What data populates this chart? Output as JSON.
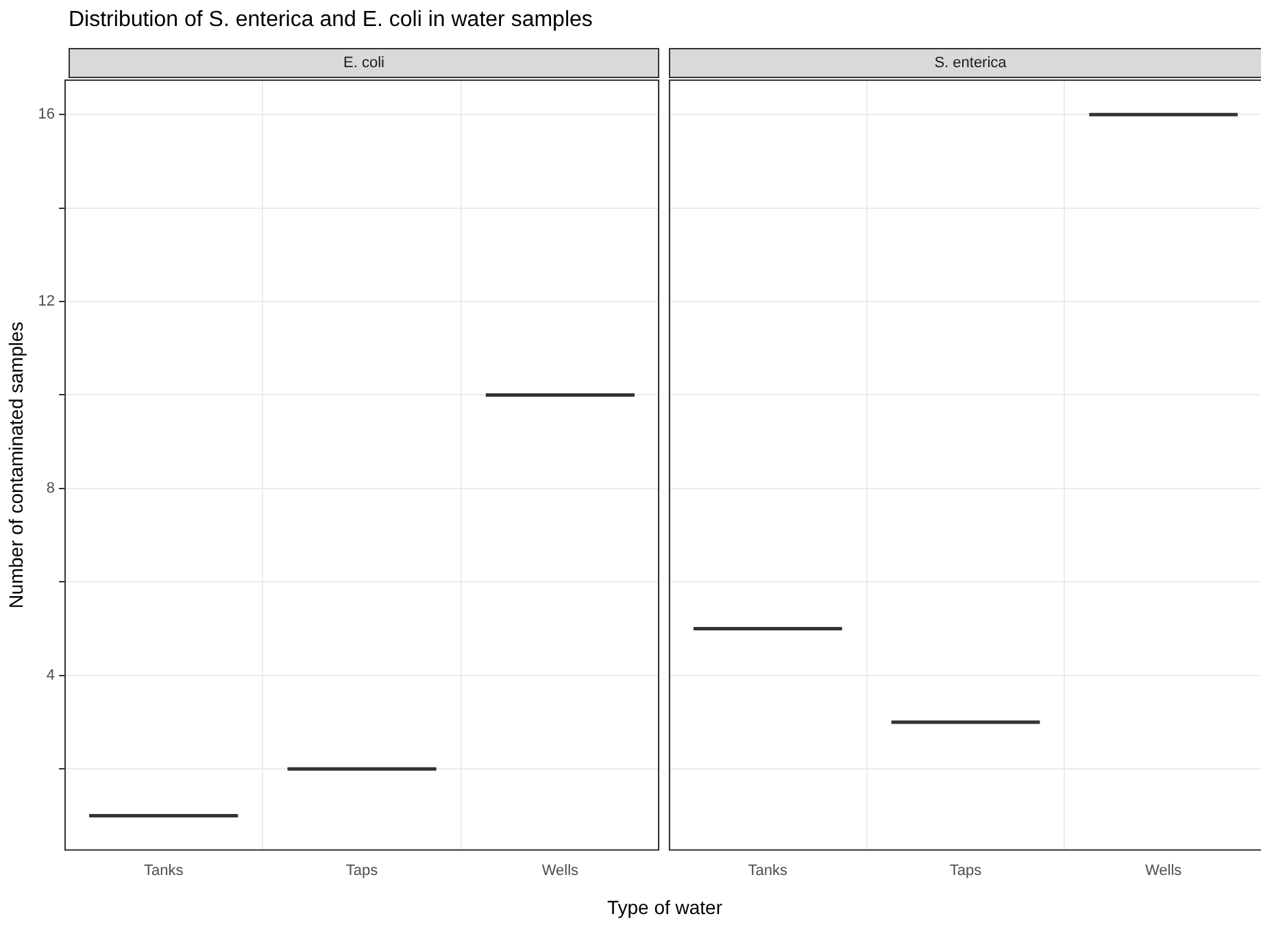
{
  "chart_data": [
    {
      "type": "box",
      "title": "Distribution of S. enterica and E. coli in water samples",
      "subtitle": "E. coli",
      "xlabel": "Type of water",
      "ylabel": "Number of contaminated samples",
      "categories": [
        "Tanks",
        "Taps",
        "Wells"
      ],
      "boxes": [
        {
          "low": 1,
          "q1": 1,
          "median": 1,
          "q3": 1,
          "high": 1
        },
        {
          "low": 2,
          "q1": 2,
          "median": 2,
          "q3": 2,
          "high": 2
        },
        {
          "low": 10,
          "q1": 10,
          "median": 10,
          "q3": 10,
          "high": 10
        }
      ],
      "ylim": [
        0.25,
        16.75
      ],
      "yticks": [
        {
          "value": 2,
          "label": null
        },
        4,
        {
          "value": 6,
          "label": null
        },
        8,
        {
          "value": 10,
          "label": null
        },
        12,
        {
          "value": 14,
          "label": null
        },
        16
      ],
      "grid": true,
      "color": "#333333"
    },
    {
      "type": "box",
      "subtitle": "S. enterica",
      "categories": [
        "Tanks",
        "Taps",
        "Wells"
      ],
      "boxes": [
        {
          "low": 5,
          "q1": 5,
          "median": 5,
          "q3": 5,
          "high": 5
        },
        {
          "low": 3,
          "q1": 3,
          "median": 3,
          "q3": 3,
          "high": 3
        },
        {
          "low": 16,
          "q1": 16,
          "median": 16,
          "q3": 16,
          "high": 16
        }
      ],
      "ylim": [
        0.25,
        16.75
      ],
      "yticks": [
        {
          "value": 2,
          "label": null
        },
        4,
        {
          "value": 6,
          "label": null
        },
        8,
        {
          "value": 10,
          "label": null
        },
        12,
        {
          "value": 14,
          "label": null
        },
        16
      ],
      "grid": true,
      "tick_labels": "x",
      "color": "#333333"
    }
  ]
}
